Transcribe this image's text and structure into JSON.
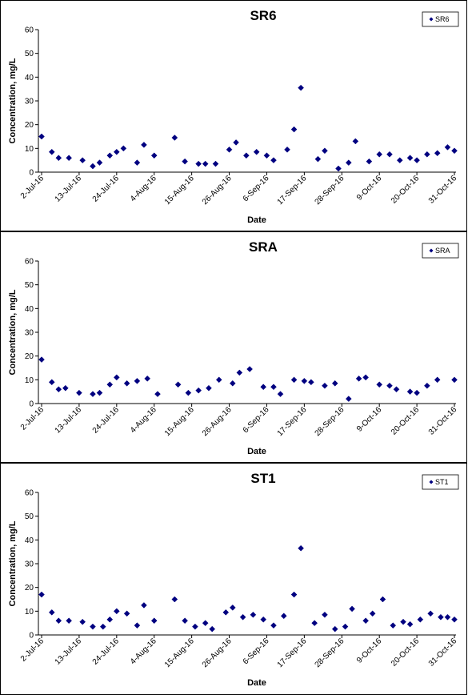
{
  "chart_data": [
    {
      "type": "scatter",
      "title": "SR6",
      "xlabel": "Date",
      "ylabel": "Concentration, mg/L",
      "ylim": [
        0,
        60
      ],
      "yticks": [
        0,
        10,
        20,
        30,
        40,
        50,
        60
      ],
      "xticks": [
        "2-Jul-16",
        "13-Jul-16",
        "24-Jul-16",
        "4-Aug-16",
        "15-Aug-16",
        "26-Aug-16",
        "6-Sep-16",
        "17-Sep-16",
        "28-Sep-16",
        "9-Oct-16",
        "20-Oct-16",
        "31-Oct-16"
      ],
      "xlim": [
        "2016-07-02",
        "2016-10-31"
      ],
      "legend": "top-right",
      "marker_color": "#000080",
      "series": [
        {
          "name": "SR6",
          "points": [
            [
              "2016-07-02",
              15
            ],
            [
              "2016-07-05",
              8.5
            ],
            [
              "2016-07-07",
              6
            ],
            [
              "2016-07-10",
              6
            ],
            [
              "2016-07-14",
              5
            ],
            [
              "2016-07-17",
              2.5
            ],
            [
              "2016-07-19",
              4
            ],
            [
              "2016-07-22",
              7
            ],
            [
              "2016-07-24",
              8.5
            ],
            [
              "2016-07-26",
              10
            ],
            [
              "2016-07-30",
              4
            ],
            [
              "2016-08-01",
              11.5
            ],
            [
              "2016-08-04",
              7
            ],
            [
              "2016-08-10",
              14.5
            ],
            [
              "2016-08-13",
              4.5
            ],
            [
              "2016-08-17",
              3.5
            ],
            [
              "2016-08-19",
              3.5
            ],
            [
              "2016-08-22",
              3.5
            ],
            [
              "2016-08-26",
              9.5
            ],
            [
              "2016-08-28",
              12.5
            ],
            [
              "2016-08-31",
              7
            ],
            [
              "2016-09-03",
              8.5
            ],
            [
              "2016-09-06",
              7
            ],
            [
              "2016-09-08",
              5
            ],
            [
              "2016-09-12",
              9.5
            ],
            [
              "2016-09-14",
              18
            ],
            [
              "2016-09-16",
              35.5
            ],
            [
              "2016-09-21",
              5.5
            ],
            [
              "2016-09-23",
              9
            ],
            [
              "2016-09-27",
              1.5
            ],
            [
              "2016-09-30",
              4
            ],
            [
              "2016-10-02",
              13
            ],
            [
              "2016-10-06",
              4.5
            ],
            [
              "2016-10-09",
              7.5
            ],
            [
              "2016-10-12",
              7.5
            ],
            [
              "2016-10-15",
              5
            ],
            [
              "2016-10-18",
              6
            ],
            [
              "2016-10-20",
              5
            ],
            [
              "2016-10-23",
              7.5
            ],
            [
              "2016-10-26",
              8
            ],
            [
              "2016-10-29",
              10.5
            ],
            [
              "2016-10-31",
              9
            ]
          ]
        }
      ]
    },
    {
      "type": "scatter",
      "title": "SRA",
      "xlabel": "Date",
      "ylabel": "Concentration, mg/L",
      "ylim": [
        0,
        60
      ],
      "yticks": [
        0,
        10,
        20,
        30,
        40,
        50,
        60
      ],
      "xticks": [
        "2-Jul-16",
        "13-Jul-16",
        "24-Jul-16",
        "4-Aug-16",
        "15-Aug-16",
        "26-Aug-16",
        "6-Sep-16",
        "17-Sep-16",
        "28-Sep-16",
        "9-Oct-16",
        "20-Oct-16",
        "31-Oct-16"
      ],
      "legend": "top-right",
      "marker_color": "#000080",
      "series": [
        {
          "name": "SRA",
          "points": [
            [
              "2016-07-02",
              18.5
            ],
            [
              "2016-07-05",
              9
            ],
            [
              "2016-07-07",
              6
            ],
            [
              "2016-07-09",
              6.5
            ],
            [
              "2016-07-13",
              4.5
            ],
            [
              "2016-07-17",
              4
            ],
            [
              "2016-07-19",
              4.5
            ],
            [
              "2016-07-22",
              8
            ],
            [
              "2016-07-24",
              11
            ],
            [
              "2016-07-27",
              8.5
            ],
            [
              "2016-07-30",
              9.5
            ],
            [
              "2016-08-02",
              10.5
            ],
            [
              "2016-08-05",
              4
            ],
            [
              "2016-08-11",
              8
            ],
            [
              "2016-08-14",
              4.5
            ],
            [
              "2016-08-17",
              5.5
            ],
            [
              "2016-08-20",
              6.5
            ],
            [
              "2016-08-23",
              10
            ],
            [
              "2016-08-27",
              8.5
            ],
            [
              "2016-08-29",
              13
            ],
            [
              "2016-09-01",
              14.5
            ],
            [
              "2016-09-05",
              7
            ],
            [
              "2016-09-08",
              7
            ],
            [
              "2016-09-10",
              4
            ],
            [
              "2016-09-14",
              10
            ],
            [
              "2016-09-17",
              9.5
            ],
            [
              "2016-09-19",
              9
            ],
            [
              "2016-09-23",
              7.5
            ],
            [
              "2016-09-26",
              8.5
            ],
            [
              "2016-09-30",
              2
            ],
            [
              "2016-10-03",
              10.5
            ],
            [
              "2016-10-05",
              11
            ],
            [
              "2016-10-09",
              8
            ],
            [
              "2016-10-12",
              7.5
            ],
            [
              "2016-10-14",
              6
            ],
            [
              "2016-10-18",
              5
            ],
            [
              "2016-10-20",
              4.5
            ],
            [
              "2016-10-23",
              7.5
            ],
            [
              "2016-10-26",
              10
            ],
            [
              "2016-10-31",
              10
            ]
          ]
        }
      ]
    },
    {
      "type": "scatter",
      "title": "ST1",
      "xlabel": "Date",
      "ylabel": "Concentration, mg/L",
      "ylim": [
        0,
        60
      ],
      "yticks": [
        0,
        10,
        20,
        30,
        40,
        50,
        60
      ],
      "xticks": [
        "2-Jul-16",
        "13-Jul-16",
        "24-Jul-16",
        "4-Aug-16",
        "15-Aug-16",
        "26-Aug-16",
        "6-Sep-16",
        "17-Sep-16",
        "28-Sep-16",
        "9-Oct-16",
        "20-Oct-16",
        "31-Oct-16"
      ],
      "legend": "top-right",
      "marker_color": "#000080",
      "series": [
        {
          "name": "ST1",
          "points": [
            [
              "2016-07-02",
              17
            ],
            [
              "2016-07-05",
              9.5
            ],
            [
              "2016-07-07",
              6
            ],
            [
              "2016-07-10",
              6
            ],
            [
              "2016-07-14",
              5.5
            ],
            [
              "2016-07-17",
              3.5
            ],
            [
              "2016-07-20",
              3.5
            ],
            [
              "2016-07-22",
              6.5
            ],
            [
              "2016-07-24",
              10
            ],
            [
              "2016-07-27",
              9
            ],
            [
              "2016-07-30",
              4
            ],
            [
              "2016-08-01",
              12.5
            ],
            [
              "2016-08-04",
              6
            ],
            [
              "2016-08-10",
              15
            ],
            [
              "2016-08-13",
              6
            ],
            [
              "2016-08-16",
              3.5
            ],
            [
              "2016-08-19",
              5
            ],
            [
              "2016-08-21",
              2.5
            ],
            [
              "2016-08-25",
              9.5
            ],
            [
              "2016-08-27",
              11.5
            ],
            [
              "2016-08-30",
              7.5
            ],
            [
              "2016-09-02",
              8.5
            ],
            [
              "2016-09-05",
              6.5
            ],
            [
              "2016-09-08",
              4
            ],
            [
              "2016-09-11",
              8
            ],
            [
              "2016-09-14",
              17
            ],
            [
              "2016-09-16",
              36.5
            ],
            [
              "2016-09-20",
              5
            ],
            [
              "2016-09-23",
              8.5
            ],
            [
              "2016-09-26",
              2.5
            ],
            [
              "2016-09-29",
              3.5
            ],
            [
              "2016-10-01",
              11
            ],
            [
              "2016-10-05",
              6
            ],
            [
              "2016-10-07",
              9
            ],
            [
              "2016-10-10",
              15
            ],
            [
              "2016-10-13",
              4
            ],
            [
              "2016-10-16",
              5.5
            ],
            [
              "2016-10-18",
              4.5
            ],
            [
              "2016-10-21",
              6.5
            ],
            [
              "2016-10-24",
              9
            ],
            [
              "2016-10-27",
              7.5
            ],
            [
              "2016-10-29",
              7.5
            ],
            [
              "2016-10-31",
              6.5
            ]
          ]
        }
      ]
    }
  ]
}
